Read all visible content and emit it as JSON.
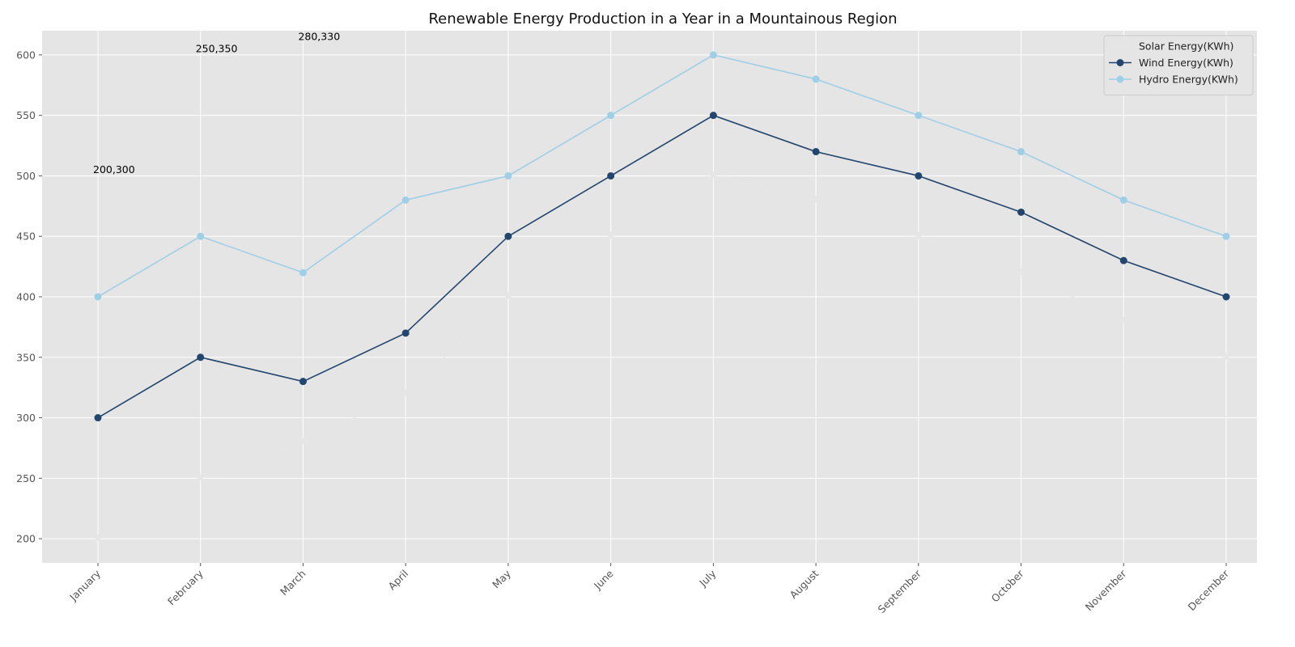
{
  "chart_data": {
    "type": "line",
    "title": "Renewable Energy Production in a Year in a Mountainous Region",
    "xlabel": "",
    "ylabel": "",
    "categories": [
      "January",
      "February",
      "March",
      "April",
      "May",
      "June",
      "July",
      "August",
      "September",
      "October",
      "November",
      "December"
    ],
    "ylim": [
      180,
      620
    ],
    "yticks": [
      200,
      250,
      300,
      350,
      400,
      450,
      500,
      550,
      600
    ],
    "grid": true,
    "legend_position": "top-right",
    "background": "#e5e5e5",
    "series": [
      {
        "name": "Solar Energy(KWh)",
        "color": "#e6e6e6",
        "marker": "star",
        "values": [
          200,
          250,
          280,
          320,
          400,
          450,
          500,
          480,
          450,
          420,
          380,
          350
        ]
      },
      {
        "name": "Wind Energy(KWh)",
        "color": "#23466e",
        "marker": "circle",
        "values": [
          300,
          350,
          330,
          370,
          450,
          500,
          550,
          520,
          500,
          470,
          430,
          400
        ]
      },
      {
        "name": "Hydro Energy(KWh)",
        "color": "#9fcfe6",
        "marker": "circle",
        "values": [
          400,
          450,
          420,
          480,
          500,
          550,
          600,
          580,
          550,
          520,
          480,
          450
        ]
      }
    ],
    "annotations": [
      {
        "text": "200,300",
        "category_index": 0,
        "y": 505
      },
      {
        "text": "250,350",
        "category_index": 1,
        "y": 605
      },
      {
        "text": "280,330",
        "category_index": 2,
        "y": 615
      }
    ]
  }
}
